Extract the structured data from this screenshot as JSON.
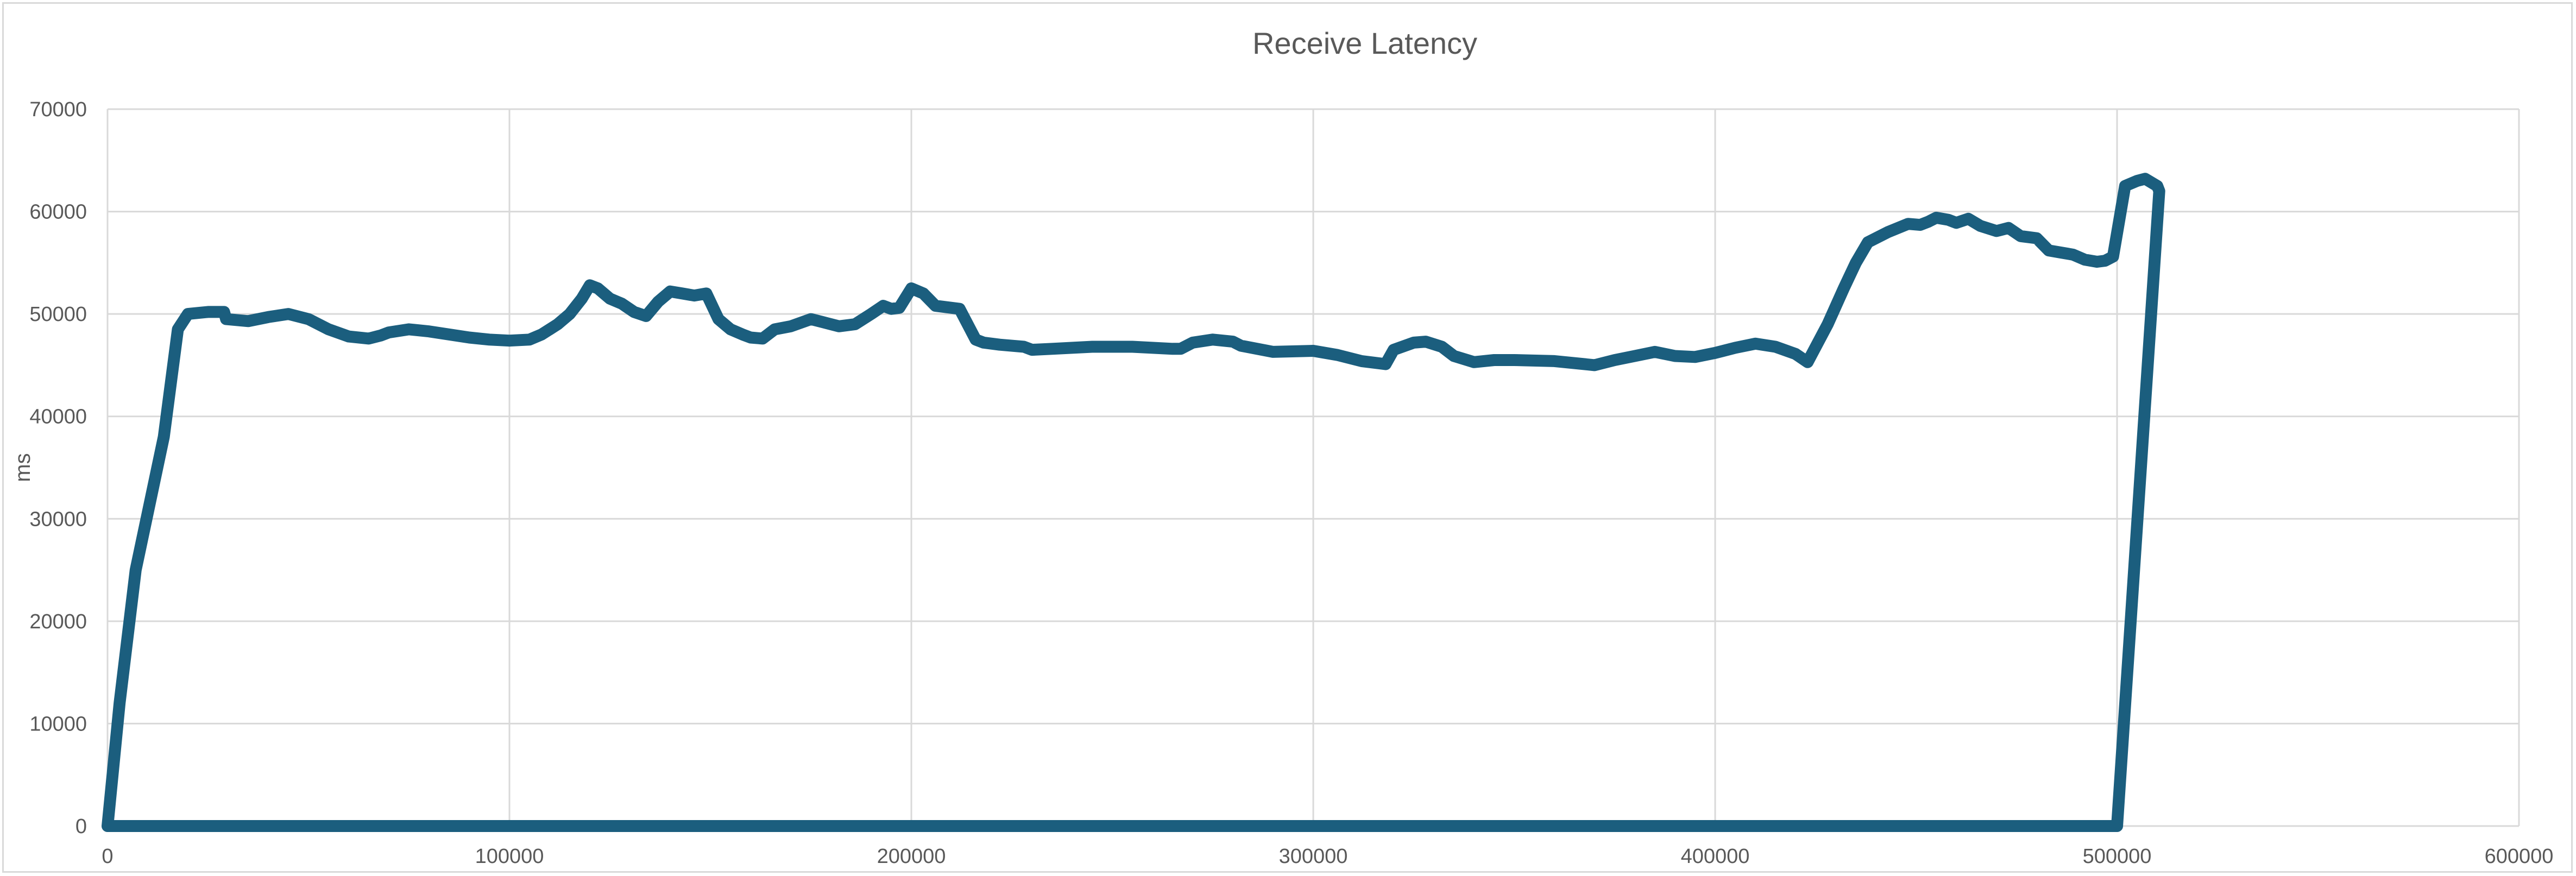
{
  "chart_data": {
    "type": "line",
    "title": "Receive Latency",
    "xlabel": "",
    "ylabel": "ms",
    "xlim": [
      0,
      600000
    ],
    "ylim": [
      0,
      70000
    ],
    "x_ticks": [
      0,
      100000,
      200000,
      300000,
      400000,
      500000,
      600000
    ],
    "y_ticks": [
      0,
      10000,
      20000,
      30000,
      40000,
      50000,
      60000,
      70000
    ],
    "x_tick_labels": [
      "0",
      "100000",
      "200000",
      "300000",
      "400000",
      "500000",
      "600000"
    ],
    "y_tick_labels": [
      "0",
      "10000",
      "20000",
      "30000",
      "40000",
      "50000",
      "60000",
      "70000"
    ],
    "grid": true,
    "legend": "none",
    "colors": {
      "series": "#1b5e7e",
      "grid": "#d9d9d9",
      "text": "#595959"
    },
    "series": [
      {
        "name": "Receive Latency",
        "x": [
          0,
          3000,
          7000,
          14000,
          17500,
          20000,
          25000,
          29000,
          29500,
          35000,
          40000,
          45000,
          50000,
          55000,
          60000,
          65000,
          68000,
          70000,
          75000,
          80000,
          85000,
          90000,
          95000,
          100000,
          105000,
          108000,
          112000,
          115000,
          118000,
          120000,
          122000,
          125000,
          128000,
          131000,
          134000,
          137000,
          140000,
          143000,
          146000,
          149000,
          152000,
          155000,
          158000,
          160000,
          163000,
          166000,
          170000,
          175000,
          178000,
          182000,
          186000,
          190000,
          193000,
          195000,
          197000,
          200000,
          203000,
          206000,
          208000,
          212000,
          216000,
          218000,
          222000,
          228000,
          230000,
          235000,
          245000,
          255000,
          265000,
          267000,
          270000,
          275000,
          280000,
          282000,
          290000,
          300000,
          306000,
          312000,
          318000,
          320000,
          325000,
          328000,
          332000,
          335000,
          340000,
          345000,
          350000,
          360000,
          370000,
          375000,
          380000,
          385000,
          390000,
          395000,
          400000,
          405000,
          410000,
          415000,
          420000,
          423000,
          428000,
          432000,
          435000,
          438000,
          443000,
          448000,
          451000,
          453000,
          455000,
          458000,
          460000,
          463000,
          466000,
          470000,
          473000,
          476000,
          480000,
          483000,
          486000,
          489000,
          492000,
          495000,
          497000,
          499000,
          502000,
          505000,
          507000,
          510000,
          510500,
          500000,
          400000,
          300000,
          200000,
          100000,
          0
        ],
        "y": [
          0,
          12000,
          25000,
          38000,
          48500,
          50000,
          50200,
          50200,
          49500,
          49300,
          49700,
          50000,
          49500,
          48500,
          47800,
          47600,
          47900,
          48200,
          48500,
          48300,
          48000,
          47700,
          47500,
          47400,
          47500,
          48000,
          49000,
          50000,
          51500,
          52800,
          52500,
          51500,
          51000,
          50200,
          49800,
          51200,
          52200,
          52000,
          51800,
          52000,
          49500,
          48500,
          48000,
          47700,
          47600,
          48500,
          48800,
          49500,
          49200,
          48800,
          49000,
          50000,
          50800,
          50500,
          50600,
          52500,
          52000,
          50800,
          50700,
          50500,
          47500,
          47200,
          47000,
          46800,
          46500,
          46600,
          46800,
          46800,
          46600,
          46600,
          47200,
          47500,
          47300,
          46900,
          46300,
          46400,
          46000,
          45400,
          45100,
          46500,
          47200,
          47300,
          46800,
          45900,
          45300,
          45500,
          45500,
          45400,
          45000,
          45500,
          45900,
          46300,
          45900,
          45800,
          46200,
          46700,
          47100,
          46800,
          46100,
          45300,
          49000,
          52500,
          55000,
          57000,
          58000,
          58800,
          58700,
          59000,
          59400,
          59200,
          58900,
          59300,
          58600,
          58100,
          58400,
          57600,
          57400,
          56200,
          56000,
          55800,
          55300,
          55100,
          55200,
          55600,
          62500,
          63000,
          63200,
          62500,
          62000,
          0,
          0,
          0,
          0,
          0,
          0
        ]
      }
    ]
  }
}
